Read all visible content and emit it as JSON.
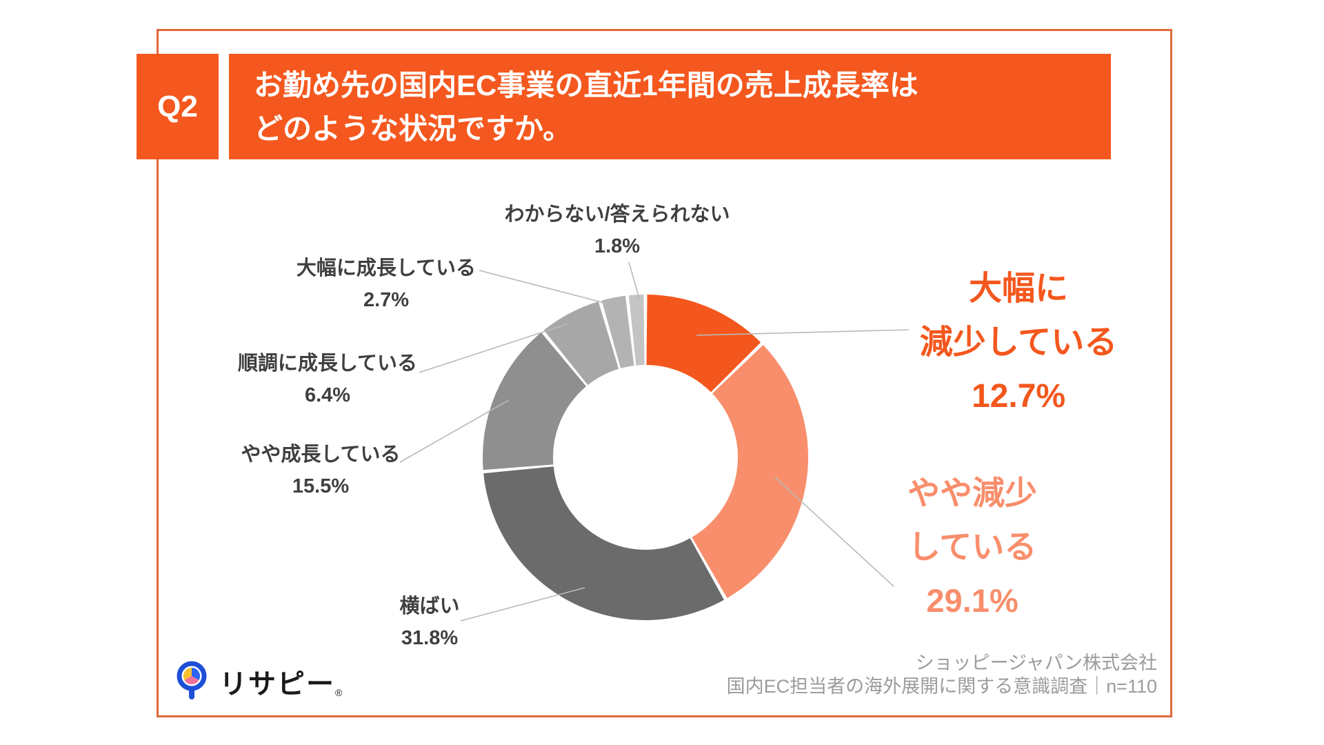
{
  "header": {
    "q_label": "Q2",
    "title": "お勤め先の国内EC事業の直近1年間の売上成長率は\nどのような状況ですか。"
  },
  "colors": {
    "header_bg": "#F4581E",
    "frame_border": "#E0693C",
    "accent_orange": "#F4571D",
    "accent_salmon": "#F88E6C",
    "label_text": "#3F3F3F",
    "footer_text": "#9B9B9B"
  },
  "chart_data": {
    "type": "pie",
    "donut": true,
    "title": "お勤め先の国内EC事業の直近1年間の売上成長率はどのような状況ですか。",
    "start_angle_deg": 0,
    "direction": "clockwise",
    "slices": [
      {
        "id": "big-decline",
        "label": "大幅に減少している",
        "value": 12.7,
        "color": "#F4571D"
      },
      {
        "id": "slight-decline",
        "label": "やや減少している",
        "value": 29.1,
        "color": "#F88E6C"
      },
      {
        "id": "flat",
        "label": "横ばい",
        "value": 31.8,
        "color": "#6B6B6B"
      },
      {
        "id": "slight-growth",
        "label": "やや成長している",
        "value": 15.5,
        "color": "#8F8F8F"
      },
      {
        "id": "steady-growth",
        "label": "順調に成長している",
        "value": 6.4,
        "color": "#A7A7A7"
      },
      {
        "id": "big-growth",
        "label": "大幅に成長している",
        "value": 2.7,
        "color": "#B3B3B3"
      },
      {
        "id": "unknown",
        "label": "わからない/答えられない",
        "value": 1.8,
        "color": "#C4C4C4"
      }
    ],
    "callouts": {
      "unknown": {
        "label": "わからない/答えられない",
        "value": "1.8%"
      },
      "big_growth": {
        "label": "大幅に成長している",
        "value": "2.7%"
      },
      "steady_growth": {
        "label": "順調に成長している",
        "value": "6.4%"
      },
      "slight_growth": {
        "label": "やや成長している",
        "value": "15.5%"
      },
      "flat": {
        "label": "横ばい",
        "value": "31.8%"
      },
      "big_decline": {
        "lines": [
          "大幅に",
          "減少している",
          "12.7%"
        ],
        "color": "#F4571D"
      },
      "slight_decline": {
        "lines": [
          "やや減少",
          "している",
          "29.1%"
        ],
        "color": "#F88E6C"
      }
    }
  },
  "footer": {
    "company": "ショッピージャパン株式会社",
    "survey": "国内EC担当者の海外展開に関する意識調査｜n=110",
    "logo_text": "リサピー",
    "logo_reg": "®"
  }
}
